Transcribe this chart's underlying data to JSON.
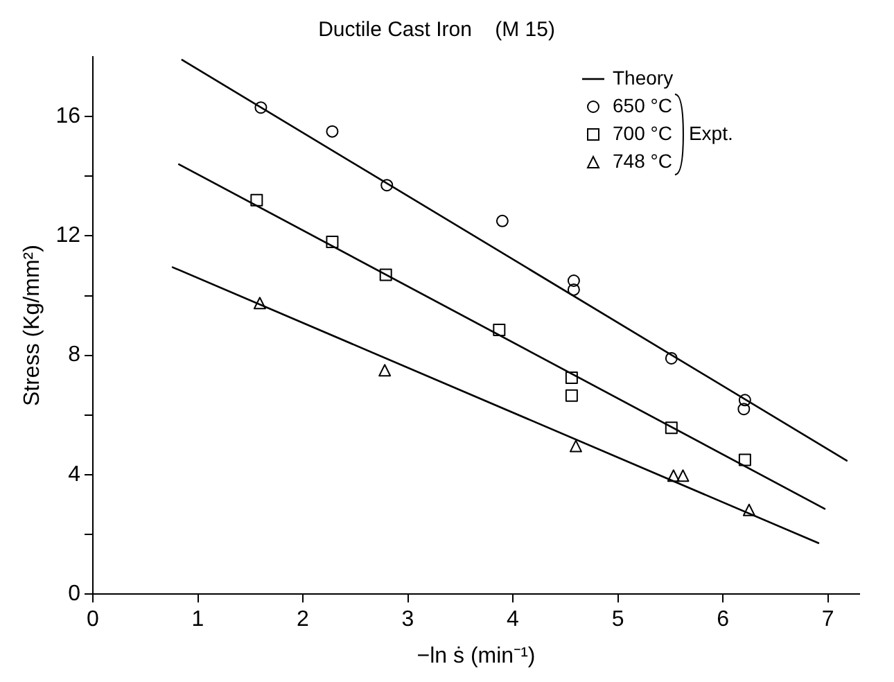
{
  "chart_data": {
    "type": "scatter",
    "title": "Ductile Cast Iron    (M 15)",
    "xlabel": "−ln ṡ (min⁻¹)",
    "ylabel": "Stress (Kg/mm²)",
    "xlim": [
      0,
      7.3
    ],
    "xticks": [
      0,
      1,
      2,
      3,
      4,
      5,
      6,
      7
    ],
    "ylim": [
      0,
      18
    ],
    "yticks": [
      0,
      {
        "value": 2,
        "label": null
      },
      4,
      {
        "value": 6,
        "label": null
      },
      8,
      {
        "value": 10,
        "label": null
      },
      12,
      {
        "value": 14,
        "label": null
      },
      16
    ],
    "grid": false,
    "legend": "top right",
    "annotations": [
      "Expt."
    ],
    "series": [
      {
        "name": "Theory",
        "type": "line",
        "marker": "none",
        "line_style": "solid",
        "color": "#000000",
        "x": [
          0.85,
          7.18
        ],
        "values": [
          17.9,
          4.47
        ]
      },
      {
        "type": "line",
        "marker": "none",
        "line_style": "solid",
        "color": "#000000",
        "x": [
          0.82,
          6.97
        ],
        "values": [
          14.4,
          2.86
        ]
      },
      {
        "type": "line",
        "marker": "none",
        "line_style": "solid",
        "color": "#000000",
        "x": [
          0.76,
          6.91
        ],
        "values": [
          10.95,
          1.71
        ]
      },
      {
        "name": "650 °C",
        "marker": "circle",
        "color": "#000000",
        "x": [
          1.6,
          2.28,
          2.8,
          3.9,
          4.58,
          4.58,
          5.51,
          6.21,
          6.2
        ],
        "values": [
          16.3,
          15.5,
          13.7,
          12.5,
          10.5,
          10.2,
          7.9,
          6.5,
          6.2
        ]
      },
      {
        "name": "700 °C",
        "marker": "square",
        "color": "#000000",
        "x": [
          1.56,
          2.28,
          2.79,
          3.87,
          4.56,
          4.56,
          5.51,
          6.21
        ],
        "values": [
          13.2,
          11.8,
          10.7,
          8.85,
          7.25,
          6.65,
          5.57,
          4.5
        ]
      },
      {
        "name": "748 °C",
        "marker": "triangle",
        "color": "#000000",
        "x": [
          1.59,
          2.78,
          4.6,
          5.53,
          5.62,
          6.25
        ],
        "values": [
          9.75,
          7.5,
          4.96,
          3.97,
          3.97,
          2.82
        ]
      }
    ]
  }
}
